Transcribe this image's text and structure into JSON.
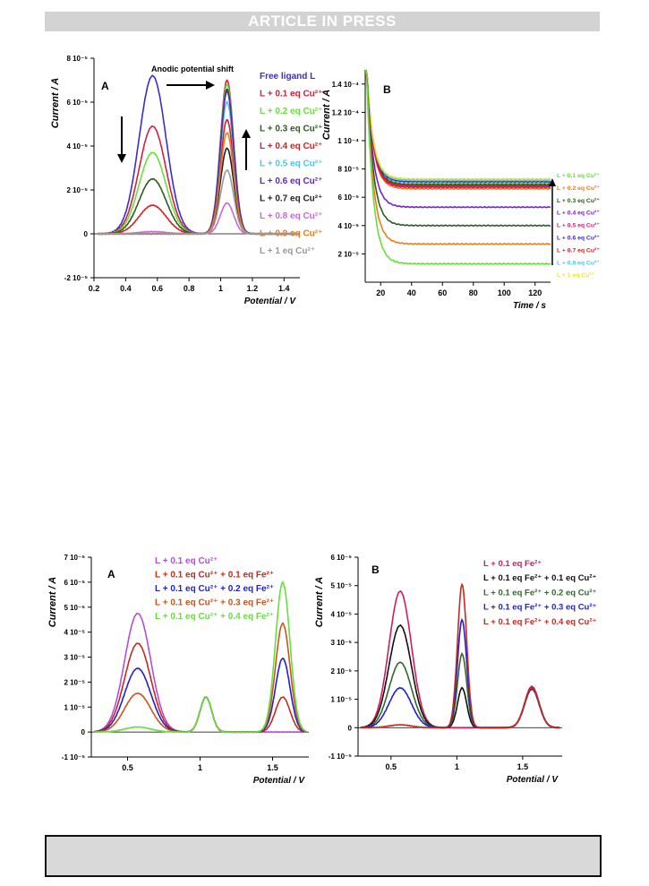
{
  "banner": {
    "text": "ARTICLE IN PRESS"
  },
  "chart_data": [
    {
      "id": "cv-cu",
      "type": "line",
      "panel_label": "A",
      "xlabel": "Potential / V",
      "ylabel": "Current / A",
      "xlim": [
        0.2,
        1.5
      ],
      "ylim": [
        -2e-05,
        8e-05
      ],
      "xticks": [
        0.2,
        0.4,
        0.6,
        0.8,
        1.0,
        1.2,
        1.4
      ],
      "xtick_labels": [
        "0.2",
        "0.4",
        "0.6",
        "0.8",
        "1",
        "1.2",
        "1.4"
      ],
      "yticks": [
        -2e-05,
        0,
        2e-05,
        4e-05,
        6e-05,
        8e-05
      ],
      "ytick_labels": [
        "-2 10⁻⁵",
        "0",
        "2 10⁻⁵",
        "4 10⁻⁵",
        "6 10⁻⁵",
        "8 10⁻⁵"
      ],
      "annotation": "Anodic potential shift",
      "legend_position": "right",
      "series": [
        {
          "name": "Free ligand L",
          "color": "#3a2bd6",
          "peaks": [
            [
              0.57,
              7.2e-05,
              0.085
            ],
            [
              1.04,
              6.5e-05,
              0.042
            ]
          ]
        },
        {
          "name": "L + 0.1 eq Cu²⁺",
          "color": "#d0223d",
          "peaks": [
            [
              0.57,
              4.9e-05,
              0.085
            ],
            [
              1.04,
              7e-05,
              0.042
            ]
          ]
        },
        {
          "name": "L + 0.2 eq Cu²⁺",
          "color": "#66e03a",
          "peaks": [
            [
              0.57,
              3.7e-05,
              0.085
            ],
            [
              1.04,
              6.8e-05,
              0.042
            ]
          ]
        },
        {
          "name": "L + 0.3 eq Cu²⁺",
          "color": "#2e5a24",
          "peaks": [
            [
              0.57,
              2.5e-05,
              0.085
            ],
            [
              1.04,
              6.6e-05,
              0.042
            ]
          ]
        },
        {
          "name": "L + 0.4 eq Cu²⁺",
          "color": "#d62020",
          "peaks": [
            [
              0.57,
              1.3e-05,
              0.085
            ],
            [
              1.04,
              5.2e-05,
              0.042
            ]
          ]
        },
        {
          "name": "L + 0.5 eq Cu²⁺",
          "color": "#4fc3e8",
          "peaks": [
            [
              0.57,
              0.0,
              0.085
            ],
            [
              1.04,
              6e-05,
              0.042
            ]
          ]
        },
        {
          "name": "L + 0.6 eq Cu²⁺",
          "color": "#5b2bb0",
          "peaks": [
            [
              0.57,
              0.0,
              0.085
            ],
            [
              1.04,
              6.5e-05,
              0.042
            ]
          ]
        },
        {
          "name": "L + 0.7 eq Cu²⁺",
          "color": "#222222",
          "peaks": [
            [
              0.57,
              0.0,
              0.085
            ],
            [
              1.04,
              3.9e-05,
              0.042
            ]
          ]
        },
        {
          "name": "L + 0.8 eq Cu²⁺",
          "color": "#cc66dd",
          "peaks": [
            [
              0.57,
              1e-06,
              0.085
            ],
            [
              1.04,
              1.4e-05,
              0.042
            ]
          ]
        },
        {
          "name": "L + 0.9 eq Cu²⁺",
          "color": "#ee7a1a",
          "peaks": [
            [
              0.57,
              0.0,
              0.085
            ],
            [
              1.04,
              4.6e-05,
              0.042
            ]
          ]
        },
        {
          "name": "L + 1 eq Cu²⁺",
          "color": "#999999",
          "peaks": [
            [
              0.57,
              0.0,
              0.085
            ],
            [
              1.04,
              2.9e-05,
              0.042
            ]
          ]
        }
      ]
    },
    {
      "id": "ca-cu",
      "type": "line",
      "panel_label": "B",
      "xlabel": "Time / s",
      "ylabel": "Current / A",
      "xlim": [
        10,
        130
      ],
      "ylim": [
        0,
        0.00015
      ],
      "xticks": [
        20,
        40,
        60,
        80,
        100,
        120
      ],
      "xtick_labels": [
        "20",
        "40",
        "60",
        "80",
        "100",
        "120"
      ],
      "yticks": [
        2e-05,
        4e-05,
        6e-05,
        8e-05,
        0.0001,
        0.00012,
        0.00014
      ],
      "ytick_labels": [
        "2 10⁻⁵",
        "4 10⁻⁵",
        "6 10⁻⁵",
        "8 10⁻⁵",
        "1 10⁻⁴",
        "1.2 10⁻⁴",
        "1.4 10⁻⁴"
      ],
      "legend_position": "right",
      "series": [
        {
          "name": "L + 0.1 eq Cu²⁺",
          "color": "#66e03a",
          "plateau": 7e-05
        },
        {
          "name": "L + 0.2 eq Cu²⁺",
          "color": "#ee7a1a",
          "plateau": 6.6e-05
        },
        {
          "name": "L + 0.3 eq Cu²⁺",
          "color": "#2e5a24",
          "plateau": 6.9e-05
        },
        {
          "name": "L + 0.4 eq Cu²⁺",
          "color": "#7a1fd0",
          "plateau": 6.8e-05
        },
        {
          "name": "L + 0.5 eq Cu²⁺",
          "color": "#cc2277",
          "plateau": 6.7e-05
        },
        {
          "name": "L + 0.6 eq Cu²⁺",
          "color": "#3a2bd6",
          "plateau": 7.1e-05
        },
        {
          "name": "L + 0.7 eq Cu²⁺",
          "color": "#d62020",
          "plateau": 6.8e-05
        },
        {
          "name": "L + 0.8 eq Cu²⁺",
          "color": "#4fc3e8",
          "plateau": 7.2e-05
        },
        {
          "name": "L + 1 eq Cu²⁺",
          "color": "#e6e632",
          "plateau": 7.3e-05
        },
        {
          "name": "",
          "color": "#7a1fd0",
          "plateau": 5.3e-05
        },
        {
          "name": "",
          "color": "#2e5a24",
          "plateau": 4e-05
        },
        {
          "name": "",
          "color": "#ee7a1a",
          "plateau": 2.7e-05
        },
        {
          "name": "",
          "color": "#66e03a",
          "plateau": 1.3e-05
        }
      ]
    },
    {
      "id": "cv-cu-fe",
      "type": "line",
      "panel_label": "A",
      "xlabel": "Potential / V",
      "ylabel": "Current / A",
      "xlim": [
        0.25,
        1.75
      ],
      "ylim": [
        -1e-05,
        7e-05
      ],
      "xticks": [
        0.5,
        1.0,
        1.5
      ],
      "xtick_labels": [
        "0.5",
        "1",
        "1.5"
      ],
      "yticks": [
        -1e-05,
        0,
        1e-05,
        2e-05,
        3e-05,
        4e-05,
        5e-05,
        6e-05,
        7e-05
      ],
      "ytick_labels": [
        "-1 10⁻⁵",
        "0",
        "1 10⁻⁵",
        "2 10⁻⁵",
        "3 10⁻⁵",
        "4 10⁻⁵",
        "5 10⁻⁵",
        "6 10⁻⁵",
        "7 10⁻⁵"
      ],
      "legend_position": "top-center",
      "series": [
        {
          "name": "L + 0.1 eq Cu²⁺",
          "color": "#b24fd8",
          "peaks": [
            [
              0.57,
              4.75e-05,
              0.09
            ],
            [
              1.04,
              1.4e-05,
              0.04
            ],
            [
              1.57,
              0.0,
              0.05
            ]
          ]
        },
        {
          "name": "L + 0.1 eq Cu²⁺ + 0.1 eq Fe²⁺",
          "color": "#c8291e",
          "peaks": [
            [
              0.57,
              3.55e-05,
              0.09
            ],
            [
              1.04,
              1.4e-05,
              0.04
            ],
            [
              1.57,
              1.4e-05,
              0.05
            ]
          ]
        },
        {
          "name": "L + 0.1 eq Cu²⁺ + 0.2 eq Fe²⁺",
          "color": "#1f1fd6",
          "peaks": [
            [
              0.57,
              2.55e-05,
              0.09
            ],
            [
              1.04,
              1.4e-05,
              0.04
            ],
            [
              1.57,
              2.95e-05,
              0.05
            ]
          ]
        },
        {
          "name": "L + 0.1 eq Cu²⁺ + 0.3 eq Fe²⁺",
          "color": "#c9541d",
          "peaks": [
            [
              0.57,
              1.55e-05,
              0.09
            ],
            [
              1.04,
              1.4e-05,
              0.04
            ],
            [
              1.57,
              4.35e-05,
              0.05
            ]
          ]
        },
        {
          "name": "L + 0.1 eq Cu²⁺ + 0.4 eq Fe²⁺",
          "color": "#66e03a",
          "peaks": [
            [
              0.57,
              2e-06,
              0.09
            ],
            [
              1.04,
              1.4e-05,
              0.04
            ],
            [
              1.57,
              6e-05,
              0.05
            ]
          ]
        }
      ]
    },
    {
      "id": "cv-fe-cu",
      "type": "line",
      "panel_label": "B",
      "xlabel": "Potential / V",
      "ylabel": "Current / A",
      "xlim": [
        0.25,
        1.8
      ],
      "ylim": [
        -1e-05,
        6e-05
      ],
      "xticks": [
        0.5,
        1.0,
        1.5
      ],
      "xtick_labels": [
        "0.5",
        "1",
        "1.5"
      ],
      "yticks": [
        -1e-05,
        0,
        1e-05,
        2e-05,
        3e-05,
        4e-05,
        5e-05,
        6e-05
      ],
      "ytick_labels": [
        "-1 10⁻⁵",
        "0",
        "1 10⁻⁵",
        "2 10⁻⁵",
        "3 10⁻⁵",
        "4 10⁻⁵",
        "5 10⁻⁵",
        "6 10⁻⁵"
      ],
      "legend_position": "top-right",
      "series": [
        {
          "name": "L + 0.1 eq Fe²⁺",
          "color": "#d81b55",
          "peaks": [
            [
              0.57,
              4.8e-05,
              0.085
            ],
            [
              1.04,
              0.0,
              0.035
            ],
            [
              1.57,
              1.45e-05,
              0.055
            ]
          ]
        },
        {
          "name": "L + 0.1 eq Fe²⁺ + 0.1 eq Cu²⁺",
          "color": "#111111",
          "peaks": [
            [
              0.57,
              3.6e-05,
              0.085
            ],
            [
              1.04,
              1.4e-05,
              0.035
            ],
            [
              1.57,
              1.4e-05,
              0.055
            ]
          ]
        },
        {
          "name": "L + 0.1 eq Fe²⁺ + 0.2 eq Cu²⁺",
          "color": "#2e6a2a",
          "peaks": [
            [
              0.57,
              2.3e-05,
              0.085
            ],
            [
              1.04,
              2.6e-05,
              0.035
            ],
            [
              1.57,
              1.4e-05,
              0.055
            ]
          ]
        },
        {
          "name": "L + 0.1 eq Fe²⁺ + 0.3 eq Cu²⁺",
          "color": "#1f1fd6",
          "peaks": [
            [
              0.57,
              1.4e-05,
              0.085
            ],
            [
              1.04,
              3.8e-05,
              0.035
            ],
            [
              1.57,
              1.35e-05,
              0.055
            ]
          ]
        },
        {
          "name": "L + 0.1 eq Fe²⁺ + 0.4 eq Cu²⁺",
          "color": "#c8291e",
          "peaks": [
            [
              0.57,
              1e-06,
              0.085
            ],
            [
              1.04,
              5.05e-05,
              0.035
            ],
            [
              1.57,
              1.4e-05,
              0.055
            ]
          ]
        }
      ]
    }
  ]
}
